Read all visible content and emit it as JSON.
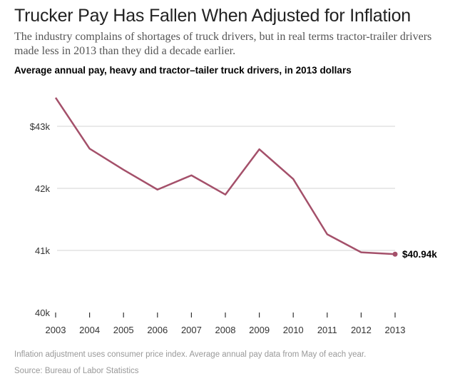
{
  "header": {
    "title": "Trucker Pay Has Fallen When Adjusted for Inflation",
    "subtitle": "The industry complains of shortages of truck drivers, but in real terms tractor-trailer drivers made less in 2013 than they did a decade earlier."
  },
  "chart_data": {
    "type": "line",
    "title": "Average annual pay, heavy and tractor–tailer truck drivers, in 2013 dollars",
    "x": [
      2003,
      2004,
      2005,
      2006,
      2007,
      2008,
      2009,
      2010,
      2011,
      2012,
      2013
    ],
    "series": [
      {
        "name": "Average annual pay",
        "values": [
          43.46,
          42.64,
          42.3,
          41.98,
          42.21,
          41.9,
          42.63,
          42.15,
          41.26,
          40.97,
          40.94
        ],
        "color": "#a4506a"
      }
    ],
    "ylim": [
      40,
      43.5
    ],
    "yticks": [
      {
        "v": 40,
        "label": "40k"
      },
      {
        "v": 41,
        "label": "41k"
      },
      {
        "v": 42,
        "label": "42k"
      },
      {
        "v": 43,
        "label": "$43k"
      }
    ],
    "xticks": [
      "2003",
      "2004",
      "2005",
      "2006",
      "2007",
      "2008",
      "2009",
      "2010",
      "2011",
      "2012",
      "2013"
    ],
    "end_label": "$40.94k",
    "grid": true
  },
  "footer": {
    "note": "Inflation adjustment uses consumer price index. Average annual pay data from May of each year.",
    "source": "Source: Bureau of Labor Statistics"
  }
}
